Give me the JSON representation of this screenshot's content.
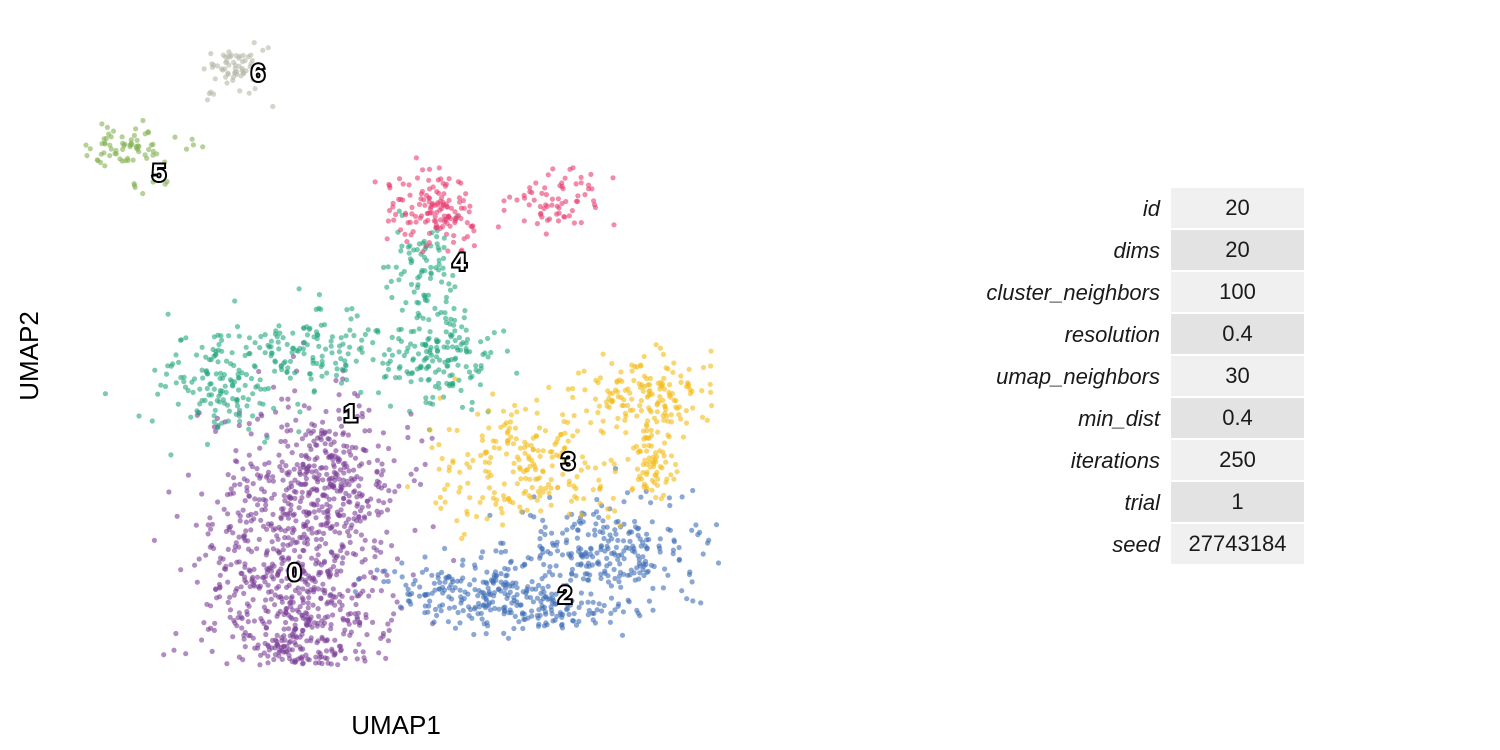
{
  "chart_data": {
    "type": "scatter",
    "xlabel": "UMAP1",
    "ylabel": "UMAP2",
    "grid": false,
    "legend": "none",
    "point_opacity": 0.6,
    "clusters": [
      {
        "label": "0",
        "color": "#7B3F98",
        "center": [
          -3.2,
          -3.6
        ],
        "n": 1150
      },
      {
        "label": "1",
        "color": "#23A67E",
        "center": [
          -1.5,
          0.7
        ],
        "n": 520
      },
      {
        "label": "2",
        "color": "#3E6DB5",
        "center": [
          5.0,
          -4.2
        ],
        "n": 560
      },
      {
        "label": "3",
        "color": "#F4BB14",
        "center": [
          5.1,
          -0.6
        ],
        "n": 450
      },
      {
        "label": "4",
        "color": "#E83E72",
        "center": [
          1.8,
          4.8
        ],
        "n": 210
      },
      {
        "label": "5",
        "color": "#84B351",
        "center": [
          -7.3,
          7.2
        ],
        "n": 80
      },
      {
        "label": "6",
        "color": "#B5B8A6",
        "center": [
          -4.3,
          9.9
        ],
        "n": 65
      }
    ]
  },
  "table": {
    "rows": [
      {
        "name": "id",
        "value": "20"
      },
      {
        "name": "dims",
        "value": "20"
      },
      {
        "name": "cluster_neighbors",
        "value": "100"
      },
      {
        "name": "resolution",
        "value": "0.4"
      },
      {
        "name": "umap_neighbors",
        "value": "30"
      },
      {
        "name": "min_dist",
        "value": "0.4"
      },
      {
        "name": "iterations",
        "value": "250"
      },
      {
        "name": "trial",
        "value": "1"
      },
      {
        "name": "seed",
        "value": "27743184"
      }
    ]
  }
}
